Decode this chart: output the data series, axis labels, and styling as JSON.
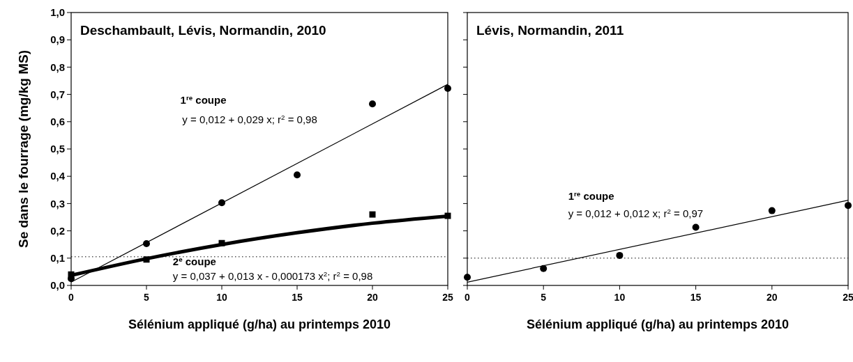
{
  "chart_data": [
    {
      "type": "scatter",
      "title": "Deschambault, Lévis, Normandin, 2010",
      "xlabel": "Sélénium appliqué (g/ha) au printemps 2010",
      "ylabel": "Se dans le fourrage (mg/kg MS)",
      "xlim": [
        0,
        25
      ],
      "ylim": [
        0,
        1
      ],
      "xticks": [
        0,
        5,
        10,
        15,
        20,
        25
      ],
      "yticks": [
        {
          "value": 0,
          "label": "0,0"
        },
        {
          "value": 0.1,
          "label": "0,1"
        },
        {
          "value": 0.2,
          "label": "0,2"
        },
        {
          "value": 0.3,
          "label": "0,3"
        },
        {
          "value": 0.4,
          "label": "0,4"
        },
        {
          "value": 0.5,
          "label": "0,5"
        },
        {
          "value": 0.6,
          "label": "0,6"
        },
        {
          "value": 0.7,
          "label": "0,7"
        },
        {
          "value": 0.8,
          "label": "0,8"
        },
        {
          "value": 0.9,
          "label": "0,9"
        },
        {
          "value": 1,
          "label": "1,0"
        }
      ],
      "series": [
        {
          "type": "line",
          "color": "#000000",
          "x": [
            0,
            25
          ],
          "values": [
            0.012,
            0.737
          ],
          "line_style": "solid"
        },
        {
          "type": "line",
          "color": "#000000",
          "x": [
            0,
            5,
            10,
            15,
            20,
            25
          ],
          "values": [
            0.037,
            0.098,
            0.15,
            0.193,
            0.228,
            0.254
          ],
          "line_style": "solid"
        },
        {
          "color": "#000000",
          "x": [
            0,
            5,
            10,
            15,
            20,
            25
          ],
          "values": [
            0.025,
            0.153,
            0.303,
            0.405,
            0.665,
            0.722
          ],
          "marker": "circle"
        },
        {
          "color": "#000000",
          "x": [
            0,
            5,
            10,
            15,
            20,
            25
          ],
          "values": [
            0.04,
            0.095,
            0.155,
            null,
            0.26,
            0.255
          ],
          "marker": "square"
        }
      ],
      "ref_lines": [
        {
          "axis": "y",
          "value": 0.105,
          "line_style": "dotted",
          "color": "#000000"
        }
      ],
      "annotations": [
        "1$^{re}$ coupe",
        "y = 0,012 + 0,029 x; r$^{2}$ = 0,98",
        "2$^{e}$ coupe",
        "y = 0,037 + 0,013 x - 0,000173 x$^{2}$; r$^{2}$ = 0,98"
      ]
    },
    {
      "type": "scatter",
      "title": "Lévis, Normandin, 2011",
      "xlabel": "Sélénium appliqué (g/ha) au printemps 2010",
      "xlim": [
        0,
        25
      ],
      "ylim": [
        0,
        1
      ],
      "tick_labels": "x",
      "xticks": [
        0,
        5,
        10,
        15,
        20,
        25
      ],
      "yticks": [
        0,
        0.1,
        0.2,
        0.3,
        0.4,
        0.5,
        0.6,
        0.7,
        0.8,
        0.9,
        1
      ],
      "series": [
        {
          "type": "line",
          "color": "#000000",
          "x": [
            0,
            25
          ],
          "values": [
            0.012,
            0.312
          ],
          "line_style": "solid"
        },
        {
          "color": "#000000",
          "x": [
            0,
            5,
            10,
            15,
            20,
            25
          ],
          "values": [
            0.03,
            0.062,
            0.11,
            0.213,
            0.274,
            0.293
          ],
          "marker": "circle"
        }
      ],
      "ref_lines": [
        {
          "axis": "y",
          "value": 0.1,
          "line_style": "dotted",
          "color": "#000000"
        }
      ],
      "annotations": [
        "1$^{re}$ coupe",
        "y = 0,012 + 0,012 x; r$^{2}$ = 0,97"
      ]
    }
  ]
}
